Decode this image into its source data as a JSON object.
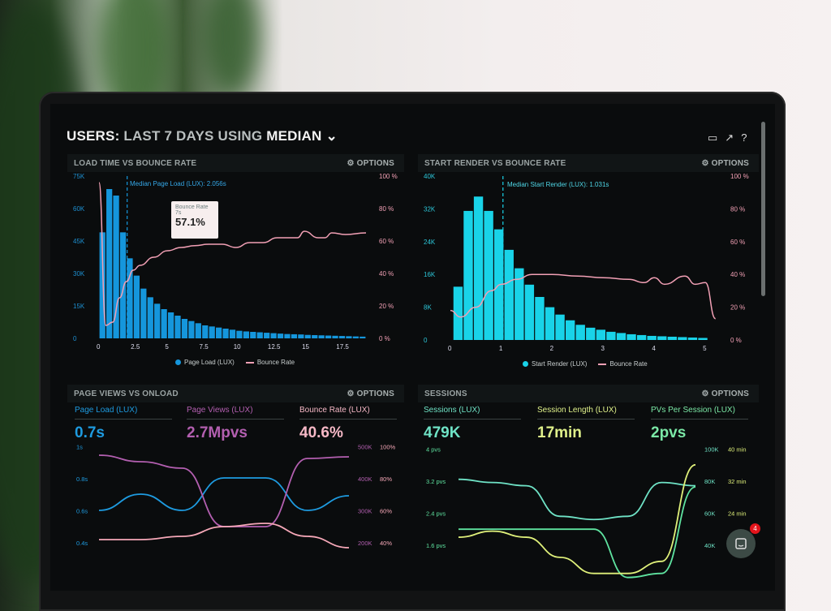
{
  "header": {
    "title_prefix": "USERS:",
    "title_range": "LAST 7 DAYS",
    "title_using": "USING",
    "title_stat": "MEDIAN",
    "chevron": "chevron-down-icon",
    "icons": [
      "monitor-icon",
      "share-icon",
      "help-icon"
    ]
  },
  "options_label": "OPTIONS",
  "panels": {
    "load": {
      "title": "LOAD TIME VS BOUNCE RATE",
      "median_label": "Median Page Load (LUX): 2.056s",
      "tooltip": {
        "title": "Bounce Rate",
        "x": "7s",
        "value": "57.1%"
      },
      "legend": [
        "Page Load (LUX)",
        "Bounce Rate"
      ]
    },
    "render": {
      "title": "START RENDER VS BOUNCE RATE",
      "median_label": "Median Start Render (LUX): 1.031s",
      "legend": [
        "Start Render (LUX)",
        "Bounce Rate"
      ]
    },
    "pageviews": {
      "title": "PAGE VIEWS VS ONLOAD",
      "kpis": [
        {
          "label": "Page Load (LUX)",
          "value": "0.7s",
          "color": "#1e9be0"
        },
        {
          "label": "Page Views (LUX)",
          "value": "2.7Mpvs",
          "color": "#b35fb0"
        },
        {
          "label": "Bounce Rate (LUX)",
          "value": "40.6%",
          "color": "#f6b8c6"
        }
      ]
    },
    "sessions": {
      "title": "SESSIONS",
      "kpis": [
        {
          "label": "Sessions (LUX)",
          "value": "479K",
          "color": "#6fe3c6"
        },
        {
          "label": "Session Length (LUX)",
          "value": "17min",
          "color": "#dff08a"
        },
        {
          "label": "PVs Per Session (LUX)",
          "value": "2pvs",
          "color": "#7be8a6"
        }
      ]
    }
  },
  "chat": {
    "badge": "4"
  },
  "chart_data": [
    {
      "type": "bar",
      "title": "LOAD TIME VS BOUNCE RATE",
      "xlabel": "",
      "x_ticks": [
        "0",
        "2.5",
        "5",
        "7.5",
        "10",
        "12.5",
        "15",
        "17.5"
      ],
      "y_ticks": [
        "0",
        "15K",
        "30K",
        "45K",
        "60K",
        "75K"
      ],
      "y2_ticks": [
        "0 %",
        "20 %",
        "40 %",
        "60 %",
        "80 %",
        "100 %"
      ],
      "ylim": [
        0,
        75000
      ],
      "y2lim": [
        0,
        100
      ],
      "xlim": [
        0,
        19.5
      ],
      "series": [
        {
          "name": "Page Load (LUX)",
          "type": "bar",
          "color": "#1596dc",
          "bin_width": 0.5,
          "values": [
            49000,
            69000,
            66000,
            49000,
            37000,
            29000,
            23000,
            19000,
            16000,
            13500,
            12000,
            10500,
            9000,
            8000,
            7000,
            6000,
            5500,
            5000,
            4500,
            4000,
            3500,
            3200,
            3000,
            2800,
            2600,
            2400,
            2200,
            2000,
            1900,
            1800,
            1600,
            1500,
            1400,
            1300,
            1200,
            1100,
            1000,
            900,
            800
          ]
        },
        {
          "name": "Bounce Rate",
          "type": "line",
          "color": "#f2a0b5",
          "axis": "y2",
          "x": [
            0,
            0.5,
            1,
            1.5,
            2,
            2.5,
            3,
            4,
            5,
            6,
            7,
            8,
            9,
            10,
            11,
            12,
            13,
            14,
            14.5,
            15,
            16,
            16.5,
            17,
            18,
            19.5
          ],
          "values": [
            96,
            8,
            10,
            25,
            35,
            42,
            45,
            50,
            54,
            56,
            57.1,
            58,
            58,
            56,
            59,
            59,
            62,
            62,
            62,
            66,
            62,
            62,
            65,
            64,
            65
          ]
        }
      ],
      "annotation": {
        "type": "vline",
        "x": 2.056,
        "label": "Median Page Load (LUX): 2.056s"
      },
      "legend": "bottom",
      "grid": false
    },
    {
      "type": "bar",
      "title": "START RENDER VS BOUNCE RATE",
      "x_ticks": [
        "0",
        "1",
        "2",
        "3",
        "4",
        "5"
      ],
      "y_ticks": [
        "0",
        "8K",
        "16K",
        "24K",
        "32K",
        "40K"
      ],
      "y2_ticks": [
        "0 %",
        "20 %",
        "40 %",
        "60 %",
        "80 %",
        "100 %"
      ],
      "ylim": [
        0,
        40000
      ],
      "y2lim": [
        0,
        100
      ],
      "xlim": [
        0,
        5.3
      ],
      "series": [
        {
          "name": "Start Render (LUX)",
          "type": "bar",
          "color": "#19d3e8",
          "bin_width": 0.2,
          "values": [
            13000,
            31500,
            35000,
            31500,
            27000,
            22000,
            17500,
            13500,
            10500,
            8000,
            6200,
            4800,
            3700,
            3000,
            2500,
            2000,
            1700,
            1400,
            1200,
            1000,
            900,
            800,
            700,
            600,
            500
          ]
        },
        {
          "name": "Bounce Rate",
          "type": "line",
          "color": "#f2a0b5",
          "axis": "y2",
          "x": [
            0,
            0.2,
            0.5,
            0.8,
            1,
            1.3,
            1.6,
            2,
            2.5,
            3,
            3.5,
            3.8,
            4,
            4.2,
            4.6,
            4.8,
            5,
            5.2
          ],
          "values": [
            18,
            14,
            20,
            30,
            34,
            37,
            40,
            40,
            39,
            38,
            37,
            35,
            38,
            34,
            39,
            34,
            35,
            13
          ]
        }
      ],
      "annotation": {
        "type": "vline",
        "x": 1.031,
        "label": "Median Start Render (LUX): 1.031s"
      },
      "legend": "bottom",
      "grid": false
    },
    {
      "type": "line",
      "title": "PAGE VIEWS VS ONLOAD",
      "y_ticks": [
        "0.4s",
        "0.6s",
        "0.8s",
        "1s"
      ],
      "y2_ticks": [
        "200K",
        "300K",
        "400K",
        "500K"
      ],
      "y3_ticks": [
        "40%",
        "60%",
        "80%",
        "100%"
      ],
      "series": [
        {
          "name": "Page Load (LUX)",
          "color": "#1e9be0",
          "axis": "y",
          "ylim": [
            0.4,
            1
          ],
          "values": [
            0.6,
            0.7,
            0.6,
            0.8,
            0.8,
            0.6,
            0.69
          ]
        },
        {
          "name": "Page Views (LUX)",
          "color": "#b35fb0",
          "axis": "y2",
          "ylim": [
            200000,
            500000
          ],
          "values": [
            470000,
            450000,
            430000,
            250000,
            250000,
            460000,
            465000
          ]
        },
        {
          "name": "Bounce Rate (LUX)",
          "color": "#f6a8b8",
          "axis": "y3",
          "ylim": [
            40,
            100
          ],
          "values": [
            42,
            42,
            44,
            50,
            52,
            44,
            37
          ]
        }
      ]
    },
    {
      "type": "line",
      "title": "SESSIONS",
      "y_ticks": [
        "1.6 pvs",
        "2.4 pvs",
        "3.2 pvs",
        "4 pvs"
      ],
      "y2_ticks": [
        "40K",
        "60K",
        "80K",
        "100K"
      ],
      "y3_ticks": [
        "24 min",
        "32 min",
        "40 min"
      ],
      "series": [
        {
          "name": "Sessions (LUX)",
          "color": "#6fe3c6",
          "axis": "y2",
          "ylim": [
            40000,
            100000
          ],
          "values": [
            81000,
            79000,
            77000,
            58000,
            56000,
            58000,
            79000,
            77000
          ]
        },
        {
          "name": "PVs Per Session (LUX)",
          "color": "#5fe3a0",
          "axis": "y",
          "ylim": [
            1.6,
            4
          ],
          "values": [
            2.0,
            2.0,
            2.0,
            2.0,
            2.0,
            0.8,
            0.9,
            3.05
          ]
        },
        {
          "name": "Session Length (LUX)",
          "color": "#dff07a",
          "axis": "y3",
          "ylim": [
            16,
            40
          ],
          "values": [
            18,
            19.5,
            18,
            13,
            9,
            9,
            12,
            36
          ]
        }
      ]
    }
  ]
}
